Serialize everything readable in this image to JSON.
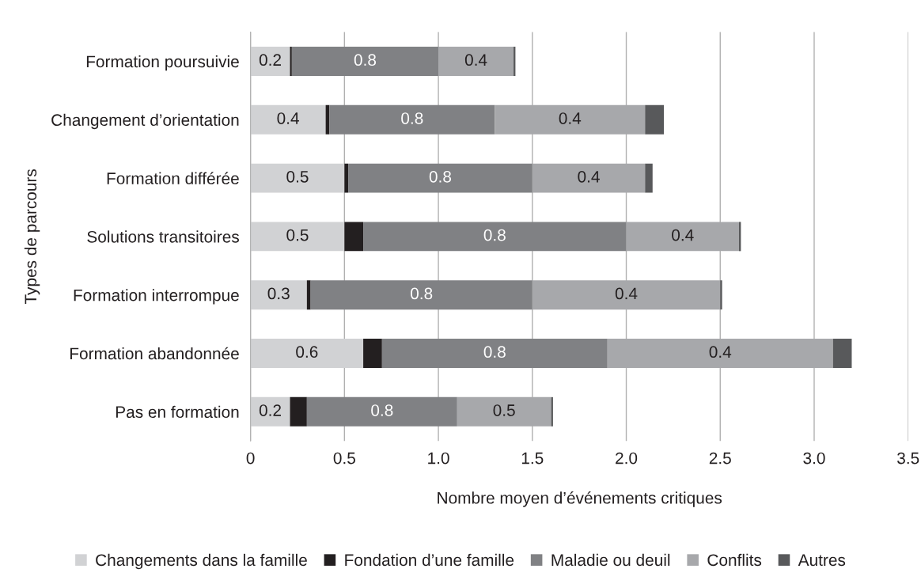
{
  "chart_data": {
    "type": "bar",
    "orientation": "horizontal",
    "stacked": true,
    "categories": [
      "Formation poursuivie",
      "Changement d’orientation",
      "Formation différée",
      "Solutions transitoires",
      "Formation interrompue",
      "Formation abandonnée",
      "Pas en formation"
    ],
    "series": [
      {
        "name": "Changements dans la famille",
        "color": "#d1d2d4",
        "values": [
          0.21,
          0.4,
          0.5,
          0.5,
          0.3,
          0.6,
          0.21
        ],
        "value_labels": [
          "0.2",
          "0.4",
          "0.5",
          "0.5",
          "0.3",
          "0.6",
          "0.2"
        ]
      },
      {
        "name": "Fondation d’une famille",
        "color": "#231f20",
        "values": [
          0.01,
          0.02,
          0.02,
          0.1,
          0.02,
          0.1,
          0.09
        ]
      },
      {
        "name": "Maladie ou deuil",
        "color": "#808184",
        "values": [
          0.78,
          0.88,
          0.98,
          1.4,
          1.18,
          1.2,
          0.8
        ]
      },
      {
        "name": "Conflits",
        "color": "#a7a8ab",
        "values": [
          0.4,
          0.8,
          0.6,
          0.6,
          1.0,
          1.2,
          0.5
        ]
      },
      {
        "name": "Autres",
        "color": "#58595b",
        "values": [
          0.01,
          0.1,
          0.04,
          0.01,
          0.01,
          0.1,
          0.01
        ]
      }
    ],
    "xlabel": "Nombre moyen d’événements critiques",
    "ylabel": "Types de parcours",
    "xlim": [
      0,
      3.5
    ],
    "xticks": [
      {
        "value": 0,
        "label": "0"
      },
      {
        "value": 0.5,
        "label": "0.5"
      },
      {
        "value": 1,
        "label": "1.0"
      },
      {
        "value": 1.5,
        "label": "1.5"
      },
      {
        "value": 2,
        "label": "2.0"
      },
      {
        "value": 2.5,
        "label": "2.5"
      },
      {
        "value": 3,
        "label": "3.0"
      },
      {
        "value": 3.5,
        "label": "3.5"
      }
    ],
    "annotations": [
      "0.8",
      "0.8",
      "0.8",
      "0.8",
      "0.8",
      "0.8",
      "0.8",
      "0.4",
      "0.4",
      "0.4",
      "0.4",
      "0.4",
      "0.4",
      "0.5"
    ],
    "grid": "x",
    "legend": "bottom"
  }
}
